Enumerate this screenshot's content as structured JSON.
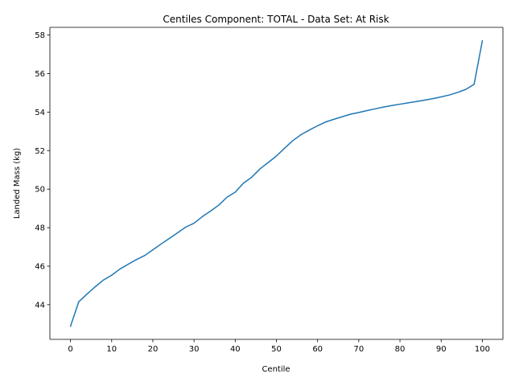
{
  "chart_data": {
    "type": "line",
    "title": "Centiles Component: TOTAL - Data Set: At Risk",
    "xlabel": "Centile",
    "ylabel": "Landed Mass (kg)",
    "xlim": [
      -5,
      105
    ],
    "ylim": [
      42.2,
      58.4
    ],
    "xticks": [
      0,
      10,
      20,
      30,
      40,
      50,
      60,
      70,
      80,
      90,
      100
    ],
    "yticks": [
      44,
      46,
      48,
      50,
      52,
      54,
      56,
      58
    ],
    "grid": false,
    "line_color": "#1f77b4",
    "x": [
      0,
      2,
      4,
      6,
      8,
      10,
      12,
      14,
      16,
      18,
      20,
      22,
      24,
      26,
      28,
      30,
      32,
      34,
      36,
      38,
      40,
      42,
      44,
      46,
      48,
      50,
      52,
      54,
      56,
      58,
      60,
      62,
      64,
      66,
      68,
      70,
      72,
      74,
      76,
      78,
      80,
      82,
      84,
      86,
      88,
      90,
      92,
      94,
      96,
      98,
      100
    ],
    "y": [
      42.88,
      44.15,
      44.55,
      44.93,
      45.28,
      45.53,
      45.85,
      46.1,
      46.34,
      46.55,
      46.85,
      47.15,
      47.44,
      47.73,
      48.03,
      48.23,
      48.57,
      48.86,
      49.17,
      49.58,
      49.84,
      50.31,
      50.62,
      51.05,
      51.38,
      51.72,
      52.13,
      52.52,
      52.83,
      53.07,
      53.29,
      53.49,
      53.63,
      53.76,
      53.89,
      53.98,
      54.08,
      54.17,
      54.26,
      54.34,
      54.41,
      54.48,
      54.55,
      54.62,
      54.7,
      54.79,
      54.89,
      55.02,
      55.18,
      55.44,
      57.7
    ]
  }
}
